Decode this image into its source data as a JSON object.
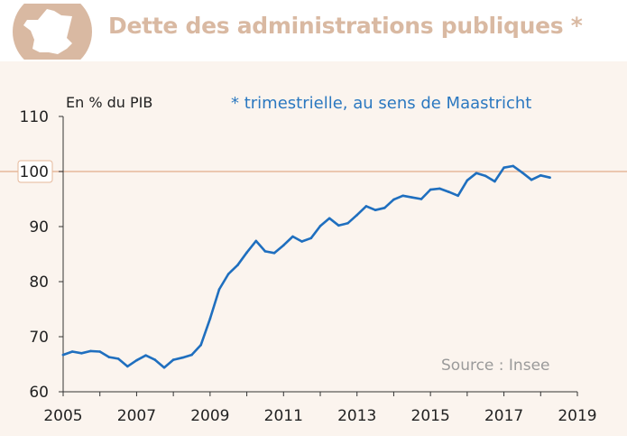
{
  "header": {
    "title": "Dette des administrations publiques *",
    "icon": "france-map-icon"
  },
  "chart_data": {
    "type": "line",
    "title": "Dette des administrations publiques *",
    "subtitle": "* trimestrielle, au sens de Maastricht",
    "ylabel": "En % du PIB",
    "source": "Source : Insee",
    "xlim": [
      2005,
      2019
    ],
    "ylim": [
      60,
      110
    ],
    "x_ticks": [
      "2005",
      "2007",
      "2009",
      "2011",
      "2013",
      "2015",
      "2017",
      "2019"
    ],
    "y_ticks": [
      "60",
      "70",
      "80",
      "90",
      "100",
      "110"
    ],
    "reference_line": 100,
    "series": [
      {
        "color": "#1f6fbf",
        "x": [
          2005.0,
          2005.25,
          2005.5,
          2005.75,
          2006.0,
          2006.25,
          2006.5,
          2006.75,
          2007.0,
          2007.25,
          2007.5,
          2007.75,
          2008.0,
          2008.25,
          2008.5,
          2008.75,
          2009.0,
          2009.25,
          2009.5,
          2009.75,
          2010.0,
          2010.25,
          2010.5,
          2010.75,
          2011.0,
          2011.25,
          2011.5,
          2011.75,
          2012.0,
          2012.25,
          2012.5,
          2012.75,
          2013.0,
          2013.25,
          2013.5,
          2013.75,
          2014.0,
          2014.25,
          2014.5,
          2014.75,
          2015.0,
          2015.25,
          2015.5,
          2015.75,
          2016.0,
          2016.25,
          2016.5,
          2016.75,
          2017.0,
          2017.25,
          2017.5,
          2017.75,
          2018.0,
          2018.25
        ],
        "values": [
          66.7,
          67.3,
          67.0,
          67.4,
          67.3,
          66.3,
          66.0,
          64.6,
          65.7,
          66.6,
          65.8,
          64.4,
          65.8,
          66.2,
          66.7,
          68.5,
          73.3,
          78.6,
          81.4,
          83.0,
          85.3,
          87.4,
          85.5,
          85.2,
          86.6,
          88.2,
          87.3,
          87.9,
          90.1,
          91.5,
          90.2,
          90.6,
          92.1,
          93.7,
          93.0,
          93.4,
          94.9,
          95.6,
          95.3,
          95.0,
          96.7,
          96.9,
          96.3,
          95.6,
          98.4,
          99.7,
          99.2,
          98.2,
          100.7,
          101.0,
          99.8,
          98.5,
          99.3,
          98.9
        ]
      }
    ]
  }
}
